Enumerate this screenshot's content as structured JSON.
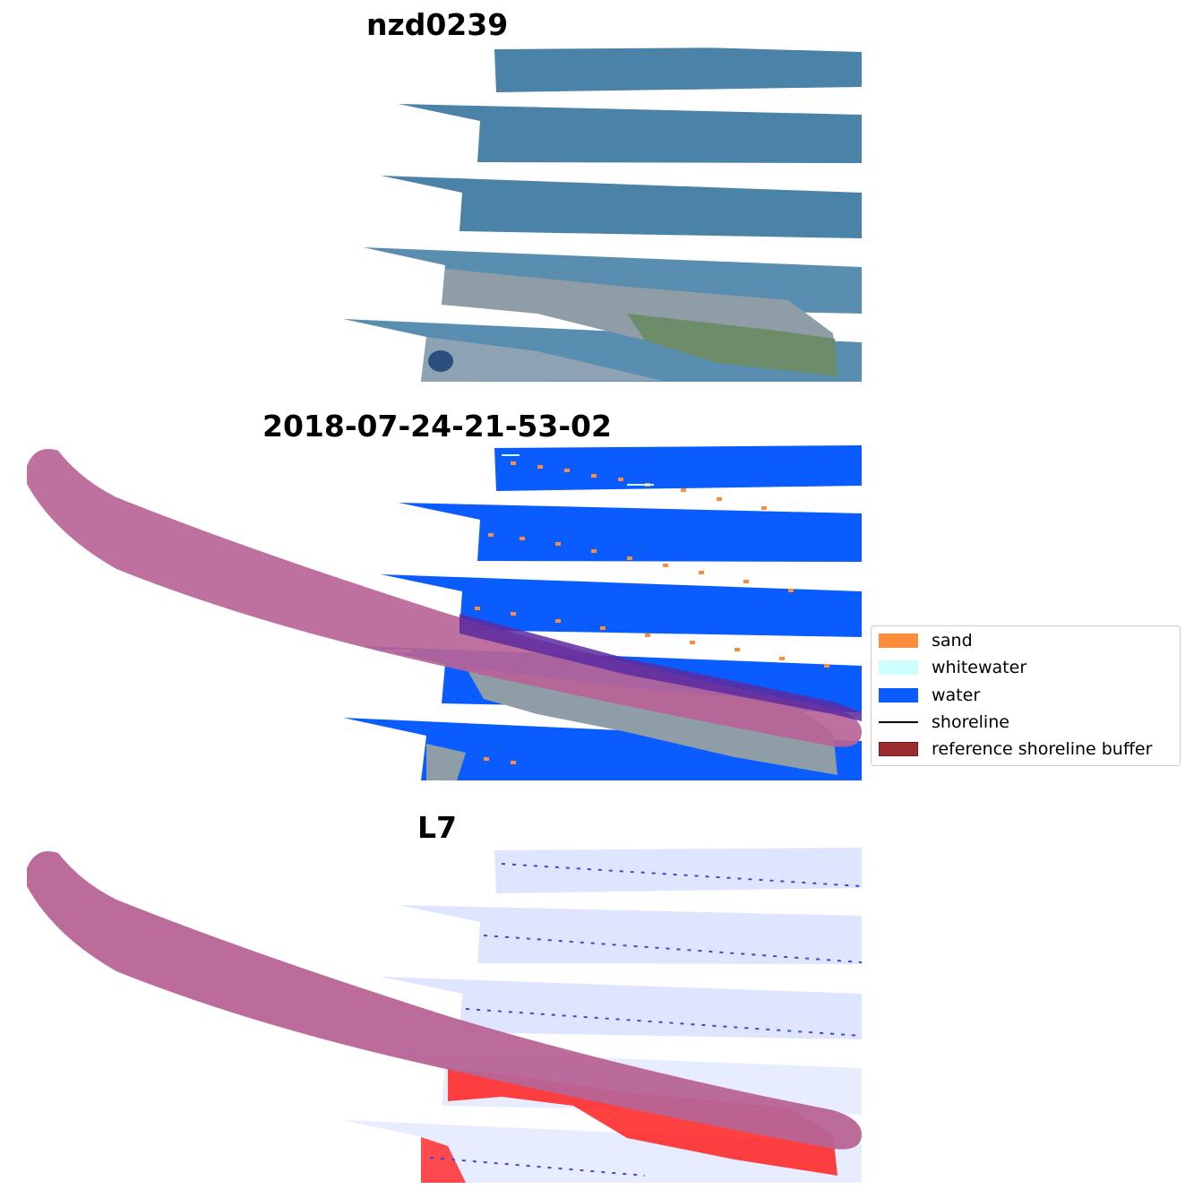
{
  "panels": [
    {
      "title": "nzd0239",
      "kind": "rgb"
    },
    {
      "title": "2018-07-24-21-53-02",
      "kind": "classified"
    },
    {
      "title": "L7",
      "kind": "index"
    }
  ],
  "legend": {
    "items": [
      {
        "label": "sand",
        "type": "patch",
        "color": "#ff8c3a"
      },
      {
        "label": "whitewater",
        "type": "patch",
        "color": "#ccffff"
      },
      {
        "label": "water",
        "type": "patch",
        "color": "#0a5cff"
      },
      {
        "label": "shoreline",
        "type": "line",
        "color": "#000000"
      },
      {
        "label": "reference shoreline buffer",
        "type": "patch",
        "color": "#9b2d30"
      }
    ]
  },
  "colors": {
    "sea_rgb": "#4a82a8",
    "land_rgb": "#8c9fa8",
    "water_class": "#0a5cff",
    "buffer_overlay": "#b86496",
    "index_pos": "#ff2020",
    "index_neg": "#dfe4ff"
  }
}
